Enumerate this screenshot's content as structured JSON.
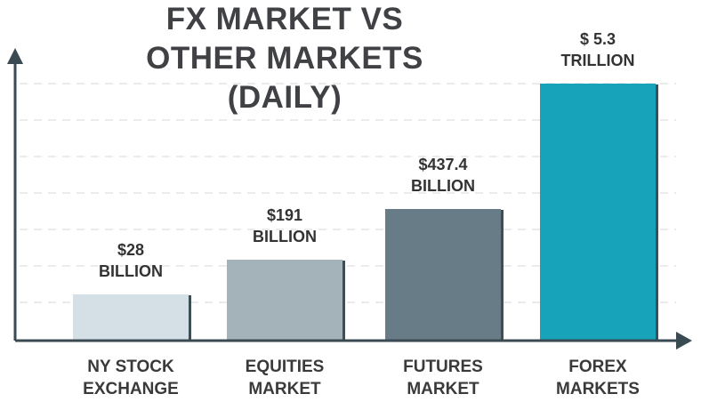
{
  "chart_data": {
    "type": "bar",
    "title_lines": [
      "FX MARKET VS",
      "OTHER MARKETS",
      "(DAILY)"
    ],
    "categories": [
      [
        "NY STOCK",
        "EXCHANGE"
      ],
      [
        "EQUITIES",
        "MARKET"
      ],
      [
        "FUTURES",
        "MARKET"
      ],
      [
        "FOREX",
        "MARKETS"
      ]
    ],
    "values": [
      0.028,
      0.191,
      0.4374,
      5.3
    ],
    "value_labels": [
      [
        "$28",
        "BILLION"
      ],
      [
        "$191",
        "BILLION"
      ],
      [
        "$437.4",
        "BILLION"
      ],
      [
        "$ 5.3",
        "TRILLION"
      ]
    ],
    "bar_colors": [
      "#d4e0e6",
      "#a4b3b9",
      "#687c88",
      "#17a4ba"
    ],
    "shadow_color": "#3e4e56",
    "axis_color": "#3a4a52",
    "grid": true,
    "xlabel": "",
    "ylabel": ""
  }
}
